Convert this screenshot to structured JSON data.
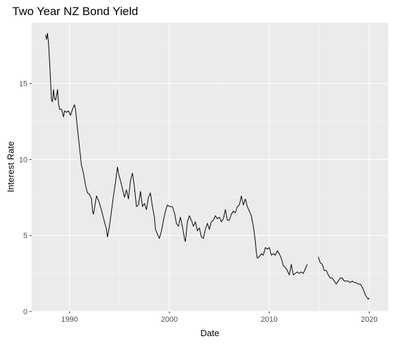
{
  "chart_data": {
    "type": "line",
    "title": "Two Year NZ Bond Yield",
    "xlabel": "Date",
    "ylabel": "Interest Rate",
    "xlim": [
      1986.2,
      2021.9
    ],
    "ylim": [
      0,
      19.0
    ],
    "x_ticks": [
      1990,
      2000,
      2010,
      2020
    ],
    "y_ticks": [
      0,
      5,
      10,
      15
    ],
    "x_tick_labels": [
      "1990",
      "2000",
      "2010",
      "2020"
    ],
    "y_tick_labels": [
      "0",
      "5",
      "10",
      "15"
    ],
    "grid": true,
    "legend": "none",
    "series": [
      {
        "color": "#000000",
        "segments": [
          [
            [
              1987.6,
              18.2
            ],
            [
              1987.7,
              17.9
            ],
            [
              1987.8,
              18.3
            ],
            [
              1987.9,
              17.6
            ],
            [
              1988.0,
              16.5
            ],
            [
              1988.1,
              15.2
            ],
            [
              1988.2,
              13.9
            ],
            [
              1988.3,
              13.8
            ],
            [
              1988.4,
              14.6
            ],
            [
              1988.5,
              14.0
            ],
            [
              1988.6,
              13.9
            ],
            [
              1988.7,
              14.2
            ],
            [
              1988.8,
              14.6
            ],
            [
              1988.9,
              13.7
            ],
            [
              1989.0,
              13.3
            ],
            [
              1989.2,
              13.3
            ],
            [
              1989.4,
              12.8
            ],
            [
              1989.5,
              13.2
            ],
            [
              1989.7,
              13.1
            ],
            [
              1989.9,
              13.2
            ],
            [
              1990.1,
              12.9
            ],
            [
              1990.3,
              13.3
            ],
            [
              1990.5,
              13.6
            ],
            [
              1990.6,
              13.3
            ],
            [
              1990.8,
              12.0
            ],
            [
              1991.0,
              10.8
            ],
            [
              1991.2,
              9.6
            ],
            [
              1991.4,
              9.1
            ],
            [
              1991.6,
              8.3
            ],
            [
              1991.8,
              7.8
            ],
            [
              1992.0,
              7.7
            ],
            [
              1992.2,
              7.4
            ],
            [
              1992.3,
              6.6
            ],
            [
              1992.4,
              6.4
            ],
            [
              1992.5,
              6.8
            ],
            [
              1992.7,
              7.6
            ],
            [
              1992.9,
              7.3
            ],
            [
              1993.1,
              6.9
            ],
            [
              1993.3,
              6.4
            ],
            [
              1993.5,
              5.9
            ],
            [
              1993.7,
              5.4
            ],
            [
              1993.8,
              4.9
            ],
            [
              1994.0,
              5.6
            ],
            [
              1994.2,
              6.6
            ],
            [
              1994.4,
              7.6
            ],
            [
              1994.6,
              8.5
            ],
            [
              1994.8,
              9.5
            ],
            [
              1994.9,
              9.1
            ],
            [
              1995.1,
              8.6
            ],
            [
              1995.3,
              8.1
            ],
            [
              1995.5,
              7.5
            ],
            [
              1995.7,
              8.0
            ],
            [
              1995.9,
              7.4
            ],
            [
              1996.1,
              8.6
            ],
            [
              1996.3,
              9.1
            ],
            [
              1996.5,
              8.2
            ],
            [
              1996.7,
              6.9
            ],
            [
              1996.9,
              7.0
            ],
            [
              1997.1,
              7.9
            ],
            [
              1997.3,
              6.9
            ],
            [
              1997.5,
              7.1
            ],
            [
              1997.7,
              6.7
            ],
            [
              1997.9,
              7.5
            ],
            [
              1998.1,
              7.8
            ],
            [
              1998.3,
              6.9
            ],
            [
              1998.5,
              6.2
            ],
            [
              1998.6,
              5.4
            ],
            [
              1998.8,
              5.1
            ],
            [
              1999.0,
              4.8
            ],
            [
              1999.2,
              5.3
            ],
            [
              1999.4,
              6.0
            ],
            [
              1999.6,
              6.6
            ],
            [
              1999.8,
              7.0
            ],
            [
              2000.0,
              6.9
            ],
            [
              2000.3,
              6.9
            ],
            [
              2000.5,
              6.5
            ],
            [
              2000.7,
              5.8
            ],
            [
              2000.9,
              5.6
            ],
            [
              2001.1,
              6.2
            ],
            [
              2001.3,
              5.6
            ],
            [
              2001.5,
              4.8
            ],
            [
              2001.6,
              4.6
            ],
            [
              2001.8,
              5.9
            ],
            [
              2002.0,
              6.3
            ],
            [
              2002.2,
              6.0
            ],
            [
              2002.4,
              5.6
            ],
            [
              2002.6,
              5.9
            ],
            [
              2002.8,
              5.3
            ],
            [
              2003.0,
              5.5
            ],
            [
              2003.2,
              4.9
            ],
            [
              2003.4,
              4.8
            ],
            [
              2003.6,
              5.4
            ],
            [
              2003.8,
              5.8
            ],
            [
              2004.0,
              5.4
            ],
            [
              2004.2,
              5.9
            ],
            [
              2004.4,
              6.0
            ],
            [
              2004.6,
              6.3
            ],
            [
              2004.8,
              6.1
            ],
            [
              2005.0,
              6.2
            ],
            [
              2005.2,
              5.9
            ],
            [
              2005.4,
              6.1
            ],
            [
              2005.6,
              6.7
            ],
            [
              2005.8,
              6.0
            ],
            [
              2006.0,
              6.0
            ],
            [
              2006.2,
              6.4
            ],
            [
              2006.4,
              6.6
            ],
            [
              2006.6,
              6.5
            ],
            [
              2006.8,
              6.9
            ],
            [
              2007.0,
              7.0
            ],
            [
              2007.2,
              7.6
            ],
            [
              2007.4,
              7.0
            ],
            [
              2007.6,
              7.4
            ],
            [
              2007.8,
              6.9
            ],
            [
              2008.0,
              6.6
            ],
            [
              2008.2,
              6.3
            ],
            [
              2008.4,
              5.6
            ],
            [
              2008.6,
              4.6
            ],
            [
              2008.7,
              3.9
            ],
            [
              2008.8,
              3.5
            ],
            [
              2009.0,
              3.6
            ],
            [
              2009.2,
              3.8
            ],
            [
              2009.4,
              3.7
            ],
            [
              2009.6,
              4.2
            ],
            [
              2009.8,
              4.1
            ],
            [
              2010.0,
              4.2
            ],
            [
              2010.2,
              3.7
            ],
            [
              2010.4,
              3.8
            ],
            [
              2010.6,
              3.7
            ],
            [
              2010.8,
              4.0
            ],
            [
              2011.0,
              3.8
            ],
            [
              2011.2,
              3.5
            ],
            [
              2011.4,
              3.0
            ],
            [
              2011.6,
              2.9
            ],
            [
              2011.8,
              2.7
            ],
            [
              2012.0,
              2.4
            ],
            [
              2012.2,
              3.1
            ],
            [
              2012.4,
              2.4
            ],
            [
              2012.6,
              2.5
            ],
            [
              2012.8,
              2.6
            ],
            [
              2013.0,
              2.5
            ],
            [
              2013.2,
              2.6
            ],
            [
              2013.4,
              2.5
            ],
            [
              2013.6,
              2.8
            ],
            [
              2013.8,
              3.1
            ]
          ],
          [
            [
              2014.9,
              3.6
            ],
            [
              2015.1,
              3.2
            ],
            [
              2015.3,
              3.1
            ],
            [
              2015.5,
              2.7
            ],
            [
              2015.7,
              2.7
            ],
            [
              2015.9,
              2.4
            ],
            [
              2016.1,
              2.2
            ],
            [
              2016.3,
              2.2
            ],
            [
              2016.5,
              2.0
            ],
            [
              2016.7,
              1.8
            ],
            [
              2016.9,
              2.0
            ],
            [
              2017.1,
              2.2
            ],
            [
              2017.3,
              2.2
            ],
            [
              2017.5,
              2.0
            ],
            [
              2017.7,
              2.0
            ],
            [
              2017.9,
              2.0
            ],
            [
              2018.1,
              1.9
            ],
            [
              2018.3,
              2.0
            ],
            [
              2018.5,
              1.9
            ],
            [
              2018.7,
              1.9
            ],
            [
              2018.9,
              1.8
            ],
            [
              2019.1,
              1.8
            ],
            [
              2019.3,
              1.6
            ],
            [
              2019.5,
              1.3
            ],
            [
              2019.6,
              1.1
            ],
            [
              2019.8,
              0.9
            ],
            [
              2019.9,
              0.8
            ],
            [
              2020.0,
              0.9
            ]
          ]
        ]
      }
    ]
  }
}
